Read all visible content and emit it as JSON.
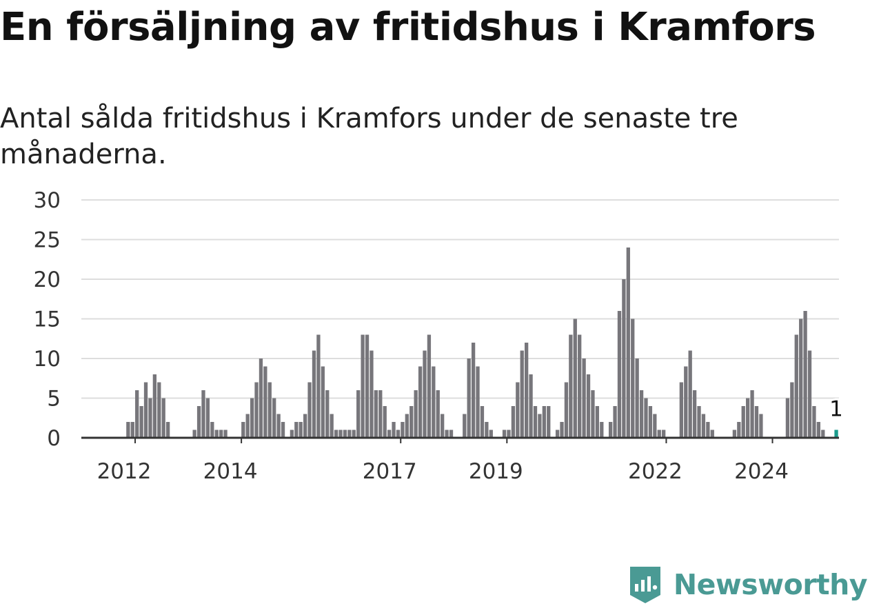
{
  "title": "En försäljning av fritidshus i Kramfors",
  "subtitle": "Antal sålda fritidshus i Kramfors under de senaste tre månaderna.",
  "brand": {
    "name": "Newsworthy",
    "icon": "newsworthy-logo-icon",
    "color": "#4a9a94"
  },
  "colors": {
    "bar": "#77767b",
    "highlight": "#1a9b8c",
    "grid": "#dddddd",
    "axis": "#333333"
  },
  "chart_data": {
    "type": "bar",
    "title": "En försäljning av fritidshus i Kramfors",
    "xlabel": "",
    "ylabel": "",
    "ylim": [
      0,
      30
    ],
    "yticks": [
      0,
      5,
      10,
      15,
      20,
      25,
      30
    ],
    "grid": true,
    "x_start": "2011-01",
    "x_end": "2025-03",
    "xtick_labels": [
      {
        "label": "2012",
        "month": "2012-01"
      },
      {
        "label": "2014",
        "month": "2014-01"
      },
      {
        "label": "2017",
        "month": "2017-01"
      },
      {
        "label": "2019",
        "month": "2019-01"
      },
      {
        "label": "2022",
        "month": "2022-01"
      },
      {
        "label": "2024",
        "month": "2024-01"
      }
    ],
    "highlight": {
      "month": "2025-03",
      "value": 1,
      "label": "1"
    },
    "series": [
      {
        "months": [
          "2011-01",
          "2011-02",
          "2011-03",
          "2011-04",
          "2011-05",
          "2011-06",
          "2011-07",
          "2011-08",
          "2011-09",
          "2011-10",
          "2011-11",
          "2011-12",
          "2012-01",
          "2012-02",
          "2012-03",
          "2012-04",
          "2012-05",
          "2012-06",
          "2012-07",
          "2012-08",
          "2012-09",
          "2012-10",
          "2012-11",
          "2012-12",
          "2013-01",
          "2013-02",
          "2013-03",
          "2013-04",
          "2013-05",
          "2013-06",
          "2013-07",
          "2013-08",
          "2013-09",
          "2013-10",
          "2013-11",
          "2013-12",
          "2014-01",
          "2014-02",
          "2014-03",
          "2014-04",
          "2014-05",
          "2014-06",
          "2014-07",
          "2014-08",
          "2014-09",
          "2014-10",
          "2014-11",
          "2014-12",
          "2015-01",
          "2015-02",
          "2015-03",
          "2015-04",
          "2015-05",
          "2015-06",
          "2015-07",
          "2015-08",
          "2015-09",
          "2015-10",
          "2015-11",
          "2015-12",
          "2016-01",
          "2016-02",
          "2016-03",
          "2016-04",
          "2016-05",
          "2016-06",
          "2016-07",
          "2016-08",
          "2016-09",
          "2016-10",
          "2016-11",
          "2016-12",
          "2017-01",
          "2017-02",
          "2017-03",
          "2017-04",
          "2017-05",
          "2017-06",
          "2017-07",
          "2017-08",
          "2017-09",
          "2017-10",
          "2017-11",
          "2017-12",
          "2018-01",
          "2018-02",
          "2018-03",
          "2018-04",
          "2018-05",
          "2018-06",
          "2018-07",
          "2018-08",
          "2018-09",
          "2018-10",
          "2018-11",
          "2018-12",
          "2019-01",
          "2019-02",
          "2019-03",
          "2019-04",
          "2019-05",
          "2019-06",
          "2019-07",
          "2019-08",
          "2019-09",
          "2019-10",
          "2019-11",
          "2019-12",
          "2020-01",
          "2020-02",
          "2020-03",
          "2020-04",
          "2020-05",
          "2020-06",
          "2020-07",
          "2020-08",
          "2020-09",
          "2020-10",
          "2020-11",
          "2020-12",
          "2021-01",
          "2021-02",
          "2021-03",
          "2021-04",
          "2021-05",
          "2021-06",
          "2021-07",
          "2021-08",
          "2021-09",
          "2021-10",
          "2021-11",
          "2021-12",
          "2022-01",
          "2022-02",
          "2022-03",
          "2022-04",
          "2022-05",
          "2022-06",
          "2022-07",
          "2022-08",
          "2022-09",
          "2022-10",
          "2022-11",
          "2022-12",
          "2023-01",
          "2023-02",
          "2023-03",
          "2023-04",
          "2023-05",
          "2023-06",
          "2023-07",
          "2023-08",
          "2023-09",
          "2023-10",
          "2023-11",
          "2023-12",
          "2024-01",
          "2024-02",
          "2024-03",
          "2024-04",
          "2024-05",
          "2024-06",
          "2024-07",
          "2024-08",
          "2024-09",
          "2024-10",
          "2024-11",
          "2024-12",
          "2025-01",
          "2025-02",
          "2025-03"
        ],
        "values": [
          0,
          0,
          0,
          0,
          0,
          0,
          0,
          0,
          0,
          0,
          2,
          2,
          6,
          4,
          7,
          5,
          8,
          7,
          5,
          2,
          0,
          0,
          0,
          0,
          0,
          1,
          4,
          6,
          5,
          2,
          1,
          1,
          1,
          0,
          0,
          0,
          2,
          3,
          5,
          7,
          10,
          9,
          7,
          5,
          3,
          2,
          0,
          1,
          2,
          2,
          3,
          7,
          11,
          13,
          9,
          6,
          3,
          1,
          1,
          1,
          1,
          1,
          6,
          13,
          13,
          11,
          6,
          6,
          4,
          1,
          2,
          1,
          2,
          3,
          4,
          6,
          9,
          11,
          13,
          9,
          6,
          3,
          1,
          1,
          0,
          0,
          3,
          10,
          12,
          9,
          4,
          2,
          1,
          0,
          0,
          1,
          1,
          4,
          7,
          11,
          12,
          8,
          4,
          3,
          4,
          4,
          0,
          1,
          2,
          7,
          13,
          15,
          13,
          10,
          8,
          6,
          4,
          2,
          0,
          2,
          4,
          16,
          20,
          24,
          15,
          10,
          6,
          5,
          4,
          3,
          1,
          1,
          0,
          0,
          0,
          7,
          9,
          11,
          6,
          4,
          3,
          2,
          1,
          0,
          0,
          0,
          0,
          1,
          2,
          4,
          5,
          6,
          4,
          3,
          0,
          0,
          0,
          0,
          0,
          5,
          7,
          13,
          15,
          16,
          11,
          4,
          2,
          1,
          0,
          0,
          1
        ]
      }
    ]
  }
}
